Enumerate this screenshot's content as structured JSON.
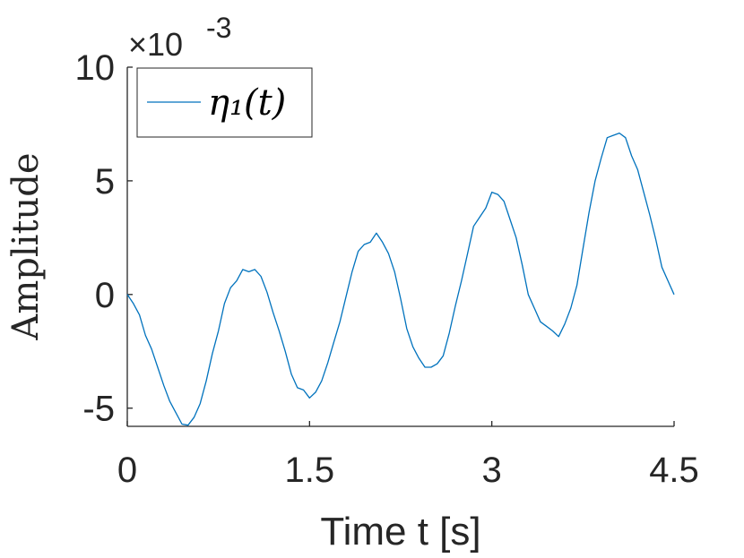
{
  "chart_data": {
    "type": "line",
    "xlabel": "Time t [s]",
    "ylabel": "Amplitude",
    "y_multiplier": "×10",
    "y_multiplier_exp": "-3",
    "xlim": [
      0,
      4.5
    ],
    "ylim": [
      -5.8,
      10
    ],
    "x_ticks": [
      0,
      1.5,
      3,
      4.5
    ],
    "x_tick_labels": [
      "0",
      "1.5",
      "3",
      "4.5"
    ],
    "y_ticks": [
      -5,
      0,
      5,
      10
    ],
    "y_tick_labels": [
      "-5",
      "0",
      "5",
      "10"
    ],
    "grid": false,
    "legend_position": "top-left",
    "series": [
      {
        "name": "η₁(t)",
        "color": "#0072BD",
        "points": [
          [
            0.0,
            0.0
          ],
          [
            0.05,
            -0.4
          ],
          [
            0.1,
            -0.9
          ],
          [
            0.15,
            -1.8
          ],
          [
            0.2,
            -2.4
          ],
          [
            0.25,
            -3.2
          ],
          [
            0.3,
            -4.0
          ],
          [
            0.35,
            -4.7
          ],
          [
            0.4,
            -5.2
          ],
          [
            0.45,
            -5.7
          ],
          [
            0.5,
            -5.75
          ],
          [
            0.55,
            -5.4
          ],
          [
            0.6,
            -4.8
          ],
          [
            0.65,
            -3.8
          ],
          [
            0.7,
            -2.6
          ],
          [
            0.75,
            -1.6
          ],
          [
            0.8,
            -0.4
          ],
          [
            0.85,
            0.3
          ],
          [
            0.9,
            0.6
          ],
          [
            0.95,
            1.1
          ],
          [
            1.0,
            1.0
          ],
          [
            1.05,
            1.1
          ],
          [
            1.1,
            0.8
          ],
          [
            1.15,
            0.1
          ],
          [
            1.2,
            -0.8
          ],
          [
            1.25,
            -1.6
          ],
          [
            1.3,
            -2.5
          ],
          [
            1.35,
            -3.5
          ],
          [
            1.4,
            -4.1
          ],
          [
            1.45,
            -4.2
          ],
          [
            1.5,
            -4.55
          ],
          [
            1.55,
            -4.3
          ],
          [
            1.6,
            -3.8
          ],
          [
            1.65,
            -3.0
          ],
          [
            1.7,
            -2.1
          ],
          [
            1.75,
            -1.2
          ],
          [
            1.8,
            -0.1
          ],
          [
            1.85,
            1.0
          ],
          [
            1.9,
            1.9
          ],
          [
            1.95,
            2.2
          ],
          [
            2.0,
            2.3
          ],
          [
            2.05,
            2.7
          ],
          [
            2.1,
            2.3
          ],
          [
            2.15,
            1.8
          ],
          [
            2.2,
            1.0
          ],
          [
            2.25,
            -0.2
          ],
          [
            2.3,
            -1.5
          ],
          [
            2.35,
            -2.3
          ],
          [
            2.4,
            -2.8
          ],
          [
            2.45,
            -3.2
          ],
          [
            2.5,
            -3.2
          ],
          [
            2.55,
            -3.05
          ],
          [
            2.6,
            -2.7
          ],
          [
            2.65,
            -1.7
          ],
          [
            2.7,
            -0.5
          ],
          [
            2.75,
            0.6
          ],
          [
            2.8,
            1.8
          ],
          [
            2.85,
            3.0
          ],
          [
            2.9,
            3.4
          ],
          [
            2.95,
            3.8
          ],
          [
            3.0,
            4.5
          ],
          [
            3.05,
            4.4
          ],
          [
            3.1,
            4.1
          ],
          [
            3.15,
            3.3
          ],
          [
            3.2,
            2.5
          ],
          [
            3.25,
            1.3
          ],
          [
            3.3,
            0.0
          ],
          [
            3.35,
            -0.6
          ],
          [
            3.4,
            -1.2
          ],
          [
            3.45,
            -1.4
          ],
          [
            3.5,
            -1.6
          ],
          [
            3.55,
            -1.85
          ],
          [
            3.6,
            -1.3
          ],
          [
            3.65,
            -0.6
          ],
          [
            3.7,
            0.4
          ],
          [
            3.75,
            2.0
          ],
          [
            3.8,
            3.6
          ],
          [
            3.85,
            5.0
          ],
          [
            3.9,
            6.0
          ],
          [
            3.95,
            6.9
          ],
          [
            4.0,
            7.0
          ],
          [
            4.05,
            7.1
          ],
          [
            4.1,
            6.9
          ],
          [
            4.15,
            6.1
          ],
          [
            4.2,
            5.5
          ],
          [
            4.25,
            4.5
          ],
          [
            4.3,
            3.5
          ],
          [
            4.35,
            2.4
          ],
          [
            4.4,
            1.2
          ],
          [
            4.45,
            0.6
          ],
          [
            4.5,
            0.0
          ]
        ]
      }
    ]
  }
}
